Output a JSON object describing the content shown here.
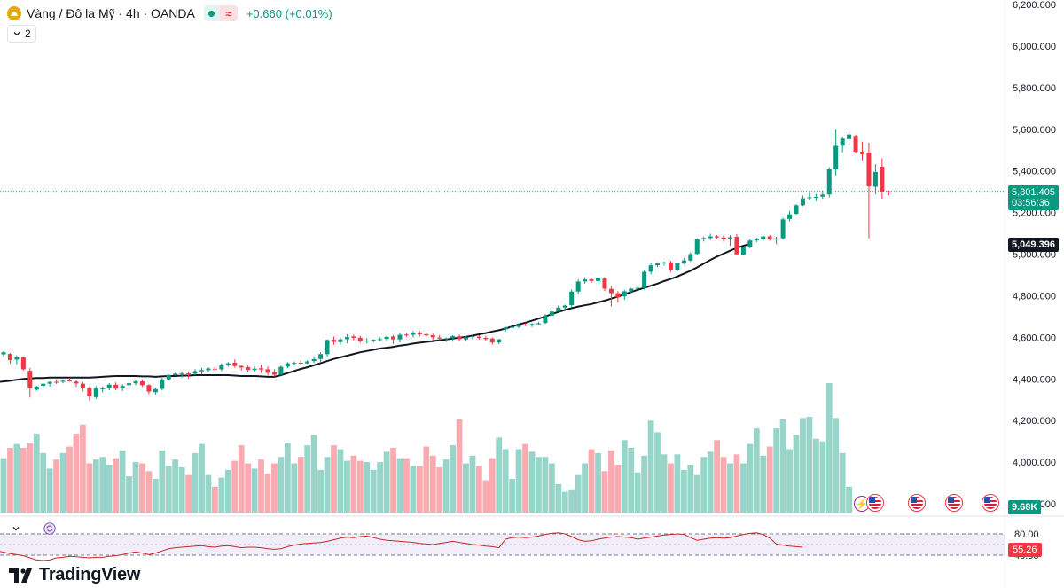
{
  "legend": {
    "title": "Vàng / Đô la Mỹ · 4h · OANDA",
    "change": "+0.660 (+0.01%)",
    "delayed_glyph": "≈",
    "market_status": "open"
  },
  "indicator_toggle": {
    "count": "2"
  },
  "price_axis": [
    "6,200.000",
    "6,000.000",
    "5,800.000",
    "5,600.000",
    "5,400.000",
    "5,200.000",
    "5,000.000",
    "4,800.000",
    "4,600.000",
    "4,400.000",
    "4,200.000",
    "4,000.000",
    "3,800.000"
  ],
  "tags": {
    "last_price": "5,301.405",
    "countdown": "03:56:36",
    "ema_value": "5,049.396",
    "volume_value": "9.68K",
    "rsi_value": "55.26"
  },
  "rsi_axis": [
    "80.00",
    "40.00"
  ],
  "watermark": "TradingView",
  "colors": {
    "up": "#089981",
    "down": "#f23645",
    "ema": "#131722",
    "rsi": "#c62828",
    "rsi_band": "#7e57c2"
  },
  "chart_data": {
    "type": "candlestick",
    "symbol": "Vàng / Đô la Mỹ",
    "interval": "4h",
    "exchange": "OANDA",
    "ylim": [
      3760,
      6220
    ],
    "candles": [
      {
        "o": 4518,
        "h": 4534,
        "l": 4507,
        "c": 4528
      },
      {
        "o": 4520,
        "h": 4524,
        "l": 4473,
        "c": 4491
      },
      {
        "o": 4493,
        "h": 4513,
        "l": 4470,
        "c": 4505
      },
      {
        "o": 4503,
        "h": 4506,
        "l": 4440,
        "c": 4446
      },
      {
        "o": 4439,
        "h": 4452,
        "l": 4310,
        "c": 4357
      },
      {
        "o": 4348,
        "h": 4366,
        "l": 4343,
        "c": 4363
      },
      {
        "o": 4367,
        "h": 4379,
        "l": 4355,
        "c": 4377
      },
      {
        "o": 4377,
        "h": 4388,
        "l": 4364,
        "c": 4385
      },
      {
        "o": 4386,
        "h": 4398,
        "l": 4376,
        "c": 4385
      },
      {
        "o": 4386,
        "h": 4398,
        "l": 4379,
        "c": 4391
      },
      {
        "o": 4392,
        "h": 4404,
        "l": 4387,
        "c": 4388
      },
      {
        "o": 4387,
        "h": 4393,
        "l": 4361,
        "c": 4378
      },
      {
        "o": 4377,
        "h": 4385,
        "l": 4340,
        "c": 4356
      },
      {
        "o": 4356,
        "h": 4363,
        "l": 4296,
        "c": 4317
      },
      {
        "o": 4312,
        "h": 4366,
        "l": 4303,
        "c": 4356
      },
      {
        "o": 4351,
        "h": 4363,
        "l": 4335,
        "c": 4355
      },
      {
        "o": 4357,
        "h": 4380,
        "l": 4345,
        "c": 4372
      },
      {
        "o": 4372,
        "h": 4383,
        "l": 4345,
        "c": 4353
      },
      {
        "o": 4354,
        "h": 4374,
        "l": 4342,
        "c": 4366
      },
      {
        "o": 4370,
        "h": 4386,
        "l": 4352,
        "c": 4379
      },
      {
        "o": 4379,
        "h": 4393,
        "l": 4369,
        "c": 4388
      },
      {
        "o": 4388,
        "h": 4398,
        "l": 4362,
        "c": 4370
      },
      {
        "o": 4370,
        "h": 4375,
        "l": 4326,
        "c": 4339
      },
      {
        "o": 4336,
        "h": 4358,
        "l": 4325,
        "c": 4351
      },
      {
        "o": 4352,
        "h": 4405,
        "l": 4346,
        "c": 4398
      },
      {
        "o": 4398,
        "h": 4422,
        "l": 4392,
        "c": 4419
      },
      {
        "o": 4418,
        "h": 4429,
        "l": 4415,
        "c": 4425
      },
      {
        "o": 4423,
        "h": 4436,
        "l": 4406,
        "c": 4427
      },
      {
        "o": 4427,
        "h": 4436,
        "l": 4402,
        "c": 4425
      },
      {
        "o": 4425,
        "h": 4447,
        "l": 4418,
        "c": 4437
      },
      {
        "o": 4436,
        "h": 4452,
        "l": 4420,
        "c": 4442
      },
      {
        "o": 4442,
        "h": 4456,
        "l": 4432,
        "c": 4450
      },
      {
        "o": 4449,
        "h": 4459,
        "l": 4439,
        "c": 4445
      },
      {
        "o": 4446,
        "h": 4475,
        "l": 4437,
        "c": 4465
      },
      {
        "o": 4466,
        "h": 4481,
        "l": 4459,
        "c": 4475
      },
      {
        "o": 4478,
        "h": 4494,
        "l": 4454,
        "c": 4462
      },
      {
        "o": 4462,
        "h": 4467,
        "l": 4440,
        "c": 4455
      },
      {
        "o": 4456,
        "h": 4465,
        "l": 4432,
        "c": 4443
      },
      {
        "o": 4443,
        "h": 4459,
        "l": 4435,
        "c": 4449
      },
      {
        "o": 4451,
        "h": 4469,
        "l": 4427,
        "c": 4445
      },
      {
        "o": 4446,
        "h": 4460,
        "l": 4417,
        "c": 4429
      },
      {
        "o": 4432,
        "h": 4446,
        "l": 4411,
        "c": 4420
      },
      {
        "o": 4421,
        "h": 4465,
        "l": 4416,
        "c": 4458
      },
      {
        "o": 4459,
        "h": 4481,
        "l": 4452,
        "c": 4475
      },
      {
        "o": 4474,
        "h": 4484,
        "l": 4469,
        "c": 4477
      },
      {
        "o": 4478,
        "h": 4490,
        "l": 4465,
        "c": 4474
      },
      {
        "o": 4475,
        "h": 4490,
        "l": 4471,
        "c": 4484
      },
      {
        "o": 4486,
        "h": 4506,
        "l": 4477,
        "c": 4495
      },
      {
        "o": 4496,
        "h": 4528,
        "l": 4482,
        "c": 4519
      },
      {
        "o": 4519,
        "h": 4590,
        "l": 4503,
        "c": 4587
      },
      {
        "o": 4588,
        "h": 4603,
        "l": 4564,
        "c": 4578
      },
      {
        "o": 4577,
        "h": 4598,
        "l": 4565,
        "c": 4590
      },
      {
        "o": 4591,
        "h": 4615,
        "l": 4571,
        "c": 4601
      },
      {
        "o": 4604,
        "h": 4613,
        "l": 4586,
        "c": 4597
      },
      {
        "o": 4598,
        "h": 4607,
        "l": 4573,
        "c": 4582
      },
      {
        "o": 4582,
        "h": 4596,
        "l": 4570,
        "c": 4584
      },
      {
        "o": 4583,
        "h": 4591,
        "l": 4575,
        "c": 4588
      },
      {
        "o": 4589,
        "h": 4600,
        "l": 4582,
        "c": 4591
      },
      {
        "o": 4592,
        "h": 4608,
        "l": 4585,
        "c": 4602
      },
      {
        "o": 4604,
        "h": 4611,
        "l": 4568,
        "c": 4590
      },
      {
        "o": 4590,
        "h": 4621,
        "l": 4575,
        "c": 4612
      },
      {
        "o": 4613,
        "h": 4621,
        "l": 4602,
        "c": 4611
      },
      {
        "o": 4612,
        "h": 4630,
        "l": 4599,
        "c": 4622
      },
      {
        "o": 4621,
        "h": 4630,
        "l": 4604,
        "c": 4614
      },
      {
        "o": 4615,
        "h": 4623,
        "l": 4605,
        "c": 4609
      },
      {
        "o": 4610,
        "h": 4617,
        "l": 4587,
        "c": 4600
      },
      {
        "o": 4599,
        "h": 4611,
        "l": 4586,
        "c": 4594
      },
      {
        "o": 4593,
        "h": 4600,
        "l": 4577,
        "c": 4595
      },
      {
        "o": 4596,
        "h": 4611,
        "l": 4582,
        "c": 4606
      },
      {
        "o": 4605,
        "h": 4612,
        "l": 4582,
        "c": 4591
      },
      {
        "o": 4590,
        "h": 4606,
        "l": 4583,
        "c": 4600
      },
      {
        "o": 4601,
        "h": 4611,
        "l": 4589,
        "c": 4605
      },
      {
        "o": 4603,
        "h": 4610,
        "l": 4589,
        "c": 4597
      },
      {
        "o": 4597,
        "h": 4607,
        "l": 4585,
        "c": 4591
      },
      {
        "o": 4594,
        "h": 4599,
        "l": 4565,
        "c": 4575
      },
      {
        "o": 4575,
        "h": 4593,
        "l": 4567,
        "c": 4590
      },
      {
        "o": 4638,
        "h": 4650,
        "l": 4627,
        "c": 4647
      },
      {
        "o": 4647,
        "h": 4662,
        "l": 4640,
        "c": 4650
      },
      {
        "o": 4650,
        "h": 4667,
        "l": 4643,
        "c": 4660
      },
      {
        "o": 4661,
        "h": 4668,
        "l": 4654,
        "c": 4660
      },
      {
        "o": 4657,
        "h": 4668,
        "l": 4649,
        "c": 4664
      },
      {
        "o": 4664,
        "h": 4674,
        "l": 4657,
        "c": 4667
      },
      {
        "o": 4669,
        "h": 4712,
        "l": 4663,
        "c": 4704
      },
      {
        "o": 4704,
        "h": 4734,
        "l": 4697,
        "c": 4724
      },
      {
        "o": 4724,
        "h": 4754,
        "l": 4722,
        "c": 4743
      },
      {
        "o": 4743,
        "h": 4757,
        "l": 4734,
        "c": 4753
      },
      {
        "o": 4755,
        "h": 4829,
        "l": 4743,
        "c": 4820
      },
      {
        "o": 4820,
        "h": 4878,
        "l": 4810,
        "c": 4868
      },
      {
        "o": 4868,
        "h": 4889,
        "l": 4858,
        "c": 4878
      },
      {
        "o": 4879,
        "h": 4887,
        "l": 4861,
        "c": 4871
      },
      {
        "o": 4871,
        "h": 4890,
        "l": 4858,
        "c": 4883
      },
      {
        "o": 4882,
        "h": 4888,
        "l": 4822,
        "c": 4834
      },
      {
        "o": 4833,
        "h": 4846,
        "l": 4748,
        "c": 4812
      },
      {
        "o": 4812,
        "h": 4822,
        "l": 4767,
        "c": 4792
      },
      {
        "o": 4797,
        "h": 4828,
        "l": 4780,
        "c": 4821
      },
      {
        "o": 4821,
        "h": 4837,
        "l": 4808,
        "c": 4834
      },
      {
        "o": 4834,
        "h": 4845,
        "l": 4823,
        "c": 4838
      },
      {
        "o": 4837,
        "h": 4922,
        "l": 4829,
        "c": 4915
      },
      {
        "o": 4915,
        "h": 4959,
        "l": 4903,
        "c": 4946
      },
      {
        "o": 4946,
        "h": 4961,
        "l": 4937,
        "c": 4955
      },
      {
        "o": 4958,
        "h": 4964,
        "l": 4945,
        "c": 4960
      },
      {
        "o": 4960,
        "h": 4968,
        "l": 4913,
        "c": 4925
      },
      {
        "o": 4924,
        "h": 4960,
        "l": 4917,
        "c": 4956
      },
      {
        "o": 4957,
        "h": 4980,
        "l": 4950,
        "c": 4969
      },
      {
        "o": 4969,
        "h": 5008,
        "l": 4963,
        "c": 5000
      },
      {
        "o": 5001,
        "h": 5076,
        "l": 4993,
        "c": 5072
      },
      {
        "o": 5072,
        "h": 5084,
        "l": 5060,
        "c": 5077
      },
      {
        "o": 5077,
        "h": 5098,
        "l": 5068,
        "c": 5085
      },
      {
        "o": 5085,
        "h": 5092,
        "l": 5070,
        "c": 5080
      },
      {
        "o": 5080,
        "h": 5090,
        "l": 5060,
        "c": 5072
      },
      {
        "o": 5075,
        "h": 5091,
        "l": 5040,
        "c": 5081
      },
      {
        "o": 5083,
        "h": 5096,
        "l": 4994,
        "c": 4999
      },
      {
        "o": 4997,
        "h": 5036,
        "l": 4993,
        "c": 5033
      },
      {
        "o": 5033,
        "h": 5074,
        "l": 5028,
        "c": 5065
      },
      {
        "o": 5066,
        "h": 5078,
        "l": 5058,
        "c": 5070
      },
      {
        "o": 5071,
        "h": 5090,
        "l": 5062,
        "c": 5085
      },
      {
        "o": 5085,
        "h": 5092,
        "l": 5064,
        "c": 5072
      },
      {
        "o": 5070,
        "h": 5084,
        "l": 5048,
        "c": 5076
      },
      {
        "o": 5076,
        "h": 5175,
        "l": 5070,
        "c": 5167
      },
      {
        "o": 5169,
        "h": 5208,
        "l": 5158,
        "c": 5191
      },
      {
        "o": 5194,
        "h": 5241,
        "l": 5189,
        "c": 5235
      },
      {
        "o": 5235,
        "h": 5281,
        "l": 5230,
        "c": 5268
      },
      {
        "o": 5269,
        "h": 5295,
        "l": 5259,
        "c": 5273
      },
      {
        "o": 5271,
        "h": 5290,
        "l": 5254,
        "c": 5275
      },
      {
        "o": 5276,
        "h": 5306,
        "l": 5266,
        "c": 5286
      },
      {
        "o": 5287,
        "h": 5418,
        "l": 5273,
        "c": 5409
      },
      {
        "o": 5408,
        "h": 5598,
        "l": 5378,
        "c": 5520
      },
      {
        "o": 5521,
        "h": 5564,
        "l": 5489,
        "c": 5555
      },
      {
        "o": 5553,
        "h": 5589,
        "l": 5521,
        "c": 5575
      },
      {
        "o": 5568,
        "h": 5574,
        "l": 5484,
        "c": 5492
      },
      {
        "o": 5492,
        "h": 5541,
        "l": 5451,
        "c": 5480
      },
      {
        "o": 5488,
        "h": 5535,
        "l": 5076,
        "c": 5326
      },
      {
        "o": 5324,
        "h": 5432,
        "l": 5287,
        "c": 5395
      },
      {
        "o": 5420,
        "h": 5460,
        "l": 5266,
        "c": 5301
      },
      {
        "o": 5302,
        "h": 5306,
        "l": 5282,
        "c": 5301
      }
    ],
    "last_price": 5301.405,
    "ema": {
      "value": 5049.396,
      "values": [
        4386,
        4391,
        4396,
        4400,
        4402,
        4404,
        4404,
        4406,
        4406,
        4406,
        4406,
        4406,
        4406,
        4406,
        4408,
        4410,
        4412,
        4414,
        4414,
        4414,
        4414,
        4412,
        4412,
        4410,
        4412,
        4414,
        4414,
        4416,
        4416,
        4418,
        4418,
        4418,
        4418,
        4418,
        4418,
        4416,
        4414,
        4414,
        4414,
        4412,
        4410,
        4410,
        4418,
        4428,
        4438,
        4448,
        4456,
        4466,
        4476,
        4486,
        4496,
        4504,
        4512,
        4520,
        4528,
        4534,
        4540,
        4546,
        4550,
        4554,
        4560,
        4564,
        4570,
        4574,
        4578,
        4582,
        4586,
        4590,
        4594,
        4598,
        4602,
        4608,
        4614,
        4620,
        4628,
        4634,
        4642,
        4652,
        4662,
        4670,
        4680,
        4690,
        4700,
        4712,
        4722,
        4732,
        4740,
        4748,
        4754,
        4760,
        4768,
        4776,
        4786,
        4796,
        4806,
        4818,
        4828,
        4838,
        4848,
        4858,
        4870,
        4880,
        4892,
        4906,
        4920,
        4936,
        4954,
        4972,
        4988,
        5002,
        5016,
        5030,
        5040,
        5049
      ]
    },
    "volume": {
      "last": "9.68K",
      "values": [
        0.42,
        0.5,
        0.53,
        0.5,
        0.54,
        0.61,
        0.46,
        0.34,
        0.41,
        0.46,
        0.51,
        0.61,
        0.68,
        0.38,
        0.41,
        0.43,
        0.37,
        0.42,
        0.48,
        0.28,
        0.39,
        0.38,
        0.32,
        0.26,
        0.48,
        0.36,
        0.41,
        0.35,
        0.29,
        0.46,
        0.53,
        0.29,
        0.2,
        0.27,
        0.33,
        0.4,
        0.52,
        0.38,
        0.34,
        0.41,
        0.3,
        0.38,
        0.43,
        0.54,
        0.38,
        0.43,
        0.52,
        0.6,
        0.33,
        0.43,
        0.52,
        0.49,
        0.4,
        0.44,
        0.4,
        0.39,
        0.33,
        0.39,
        0.47,
        0.5,
        0.42,
        0.42,
        0.36,
        0.36,
        0.51,
        0.44,
        0.35,
        0.41,
        0.52,
        0.72,
        0.38,
        0.44,
        0.36,
        0.25,
        0.42,
        0.58,
        0.49,
        0.26,
        0.49,
        0.53,
        0.47,
        0.43,
        0.43,
        0.38,
        0.22,
        0.16,
        0.18,
        0.29,
        0.38,
        0.49,
        0.46,
        0.32,
        0.48,
        0.37,
        0.56,
        0.5,
        0.31,
        0.44,
        0.71,
        0.62,
        0.45,
        0.38,
        0.45,
        0.33,
        0.37,
        0.29,
        0.43,
        0.47,
        0.56,
        0.43,
        0.38,
        0.45,
        0.38,
        0.53,
        0.65,
        0.44,
        0.51,
        0.65,
        0.72,
        0.49,
        0.6,
        0.73,
        0.74,
        0.57,
        0.55,
        1.0,
        0.73,
        0.46,
        0.2
      ],
      "colors": "up/down matches candle direction"
    },
    "rsi": {
      "value": 55.26,
      "upper": 80,
      "lower": 40,
      "values": [
        47,
        43,
        41,
        39,
        35,
        31,
        30,
        31,
        35,
        36,
        38,
        37,
        36,
        35,
        36,
        36,
        38,
        39,
        41,
        44,
        46,
        44,
        41,
        44,
        48,
        52,
        54,
        55,
        56,
        57,
        58,
        56,
        55,
        57,
        58,
        56,
        54,
        55,
        55,
        54,
        52,
        51,
        52,
        56,
        59,
        61,
        62,
        63,
        64,
        66,
        69,
        72,
        74,
        73,
        75,
        76,
        73,
        70,
        68,
        67,
        66,
        65,
        64,
        62,
        61,
        60,
        62,
        64,
        66,
        64,
        62,
        60,
        59,
        57,
        56,
        54,
        70,
        73,
        74,
        73,
        74,
        76,
        79,
        81,
        82,
        80,
        75,
        69,
        66,
        67,
        70,
        72,
        74,
        75,
        74,
        73,
        70,
        72,
        74,
        76,
        78,
        79,
        80,
        79,
        73,
        68,
        70,
        72,
        73,
        72,
        73,
        76,
        79,
        81,
        82,
        79,
        72,
        61,
        59,
        57,
        56,
        55
      ]
    }
  }
}
